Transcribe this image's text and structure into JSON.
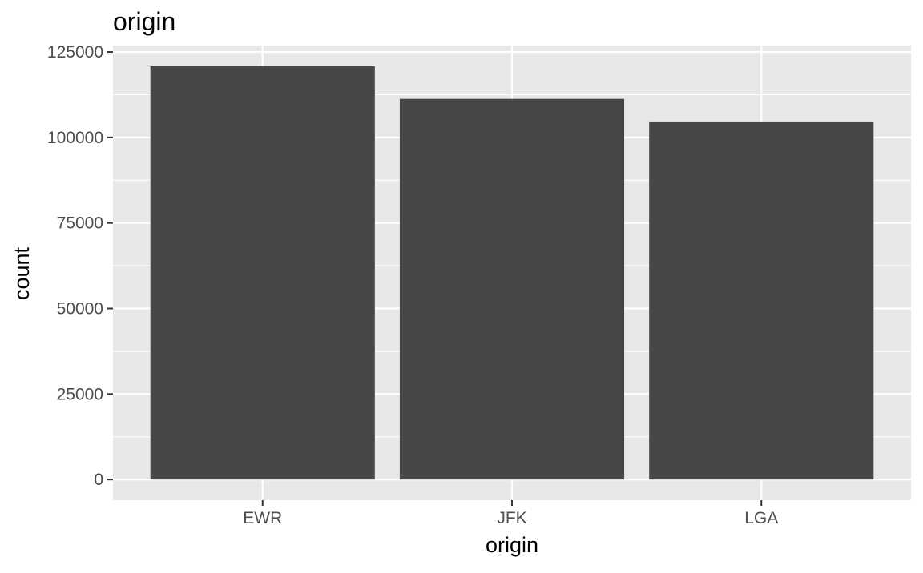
{
  "chart_data": {
    "type": "bar",
    "title": "origin",
    "xlabel": "origin",
    "ylabel": "count",
    "categories": [
      "EWR",
      "JFK",
      "LGA"
    ],
    "values": [
      120835,
      111279,
      104662
    ],
    "ylim": [
      -6042,
      126877
    ],
    "yticks": [
      0,
      25000,
      50000,
      75000,
      100000,
      125000
    ],
    "ytick_labels": [
      "0",
      "25000",
      "50000",
      "75000",
      "100000",
      "125000"
    ],
    "grid": true,
    "legend": "none",
    "colors": {
      "bar": "#474747",
      "panel": "#e8e8e8",
      "grid": "#ffffff",
      "tick": "#333333",
      "tick_text": "#4d4d4d"
    }
  }
}
